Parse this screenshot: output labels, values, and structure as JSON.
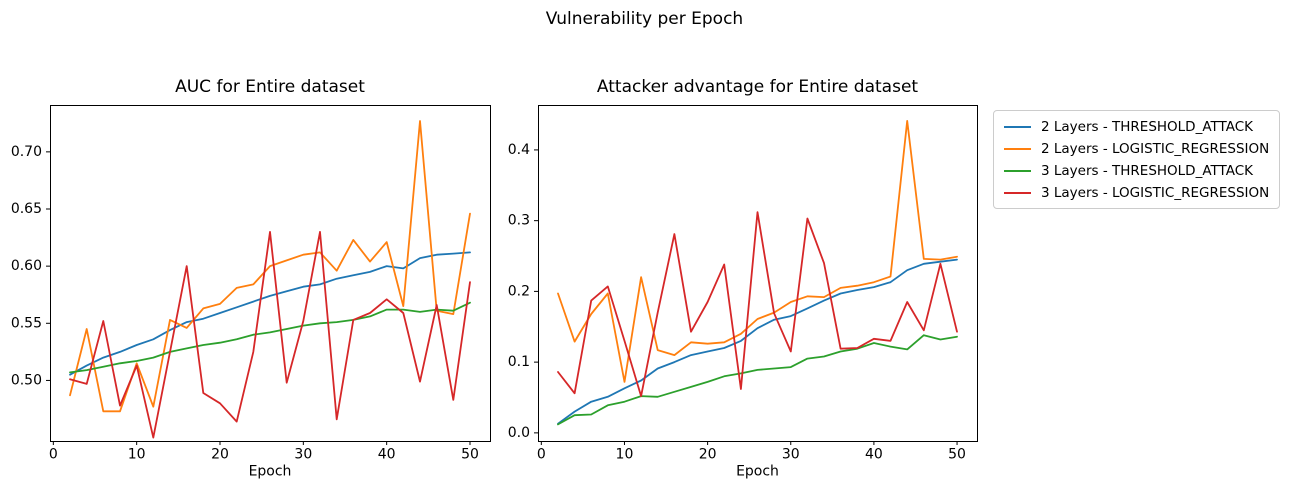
{
  "figure": {
    "suptitle": "Vulnerability per Epoch",
    "background": "#ffffff"
  },
  "legend": {
    "position": "outside upper right",
    "entries": [
      {
        "label": "2 Layers - THRESHOLD_ATTACK",
        "color": "#1f77b4"
      },
      {
        "label": "2 Layers - LOGISTIC_REGRESSION",
        "color": "#ff7f0e"
      },
      {
        "label": "3 Layers - THRESHOLD_ATTACK",
        "color": "#2ca02c"
      },
      {
        "label": "3 Layers - LOGISTIC_REGRESSION",
        "color": "#d62728"
      }
    ]
  },
  "chart_data": [
    {
      "type": "line",
      "title": "AUC for Entire dataset",
      "xlabel": "Epoch",
      "ylabel": "",
      "grid": false,
      "x": [
        2,
        4,
        6,
        8,
        10,
        12,
        14,
        16,
        18,
        20,
        22,
        24,
        26,
        28,
        30,
        32,
        34,
        36,
        38,
        40,
        42,
        44,
        46,
        48,
        50
      ],
      "xlim": [
        -0.4,
        52.4
      ],
      "ylim": [
        0.447,
        0.741
      ],
      "xticks": [
        0,
        10,
        20,
        30,
        40,
        50
      ],
      "xtick_labels": [
        "0",
        "10",
        "20",
        "30",
        "40",
        "50"
      ],
      "yticks": [
        0.5,
        0.55,
        0.6,
        0.65,
        0.7
      ],
      "ytick_labels": [
        "0.50",
        "0.55",
        "0.60",
        "0.65",
        "0.70"
      ],
      "series": [
        {
          "name": "2 Layers - THRESHOLD_ATTACK",
          "color": "#1f77b4",
          "values": [
            0.505,
            0.513,
            0.52,
            0.525,
            0.531,
            0.536,
            0.544,
            0.551,
            0.554,
            0.559,
            0.564,
            0.569,
            0.574,
            0.578,
            0.582,
            0.584,
            0.589,
            0.592,
            0.595,
            0.6,
            0.598,
            0.607,
            0.61,
            0.611,
            0.612
          ]
        },
        {
          "name": "2 Layers - LOGISTIC_REGRESSION",
          "color": "#ff7f0e",
          "values": [
            0.487,
            0.545,
            0.473,
            0.473,
            0.515,
            0.477,
            0.553,
            0.546,
            0.563,
            0.567,
            0.581,
            0.584,
            0.6,
            0.605,
            0.61,
            0.612,
            0.596,
            0.623,
            0.604,
            0.621,
            0.565,
            0.727,
            0.561,
            0.558,
            0.646
          ]
        },
        {
          "name": "3 Layers - THRESHOLD_ATTACK",
          "color": "#2ca02c",
          "values": [
            0.507,
            0.509,
            0.512,
            0.515,
            0.517,
            0.52,
            0.525,
            0.528,
            0.531,
            0.533,
            0.536,
            0.54,
            0.542,
            0.545,
            0.548,
            0.55,
            0.551,
            0.553,
            0.556,
            0.562,
            0.562,
            0.56,
            0.562,
            0.561,
            0.568
          ]
        },
        {
          "name": "3 Layers - LOGISTIC_REGRESSION",
          "color": "#d62728",
          "values": [
            0.501,
            0.497,
            0.552,
            0.478,
            0.513,
            0.45,
            0.525,
            0.6,
            0.489,
            0.48,
            0.464,
            0.525,
            0.63,
            0.498,
            0.552,
            0.63,
            0.466,
            0.553,
            0.559,
            0.571,
            0.559,
            0.499,
            0.566,
            0.483,
            0.586
          ]
        }
      ]
    },
    {
      "type": "line",
      "title": "Attacker advantage for Entire dataset",
      "xlabel": "Epoch",
      "ylabel": "",
      "grid": false,
      "x": [
        2,
        4,
        6,
        8,
        10,
        12,
        14,
        16,
        18,
        20,
        22,
        24,
        26,
        28,
        30,
        32,
        34,
        36,
        38,
        40,
        42,
        44,
        46,
        48,
        50
      ],
      "xlim": [
        -0.4,
        52.4
      ],
      "ylim": [
        -0.0115,
        0.4635
      ],
      "xticks": [
        0,
        10,
        20,
        30,
        40,
        50
      ],
      "xtick_labels": [
        "0",
        "10",
        "20",
        "30",
        "40",
        "50"
      ],
      "yticks": [
        0.0,
        0.1,
        0.2,
        0.3,
        0.4
      ],
      "ytick_labels": [
        "0.0",
        "0.1",
        "0.2",
        "0.3",
        "0.4"
      ],
      "series": [
        {
          "name": "2 Layers - THRESHOLD_ATTACK",
          "color": "#1f77b4",
          "values": [
            0.013,
            0.03,
            0.044,
            0.051,
            0.063,
            0.074,
            0.091,
            0.1,
            0.11,
            0.115,
            0.12,
            0.13,
            0.148,
            0.16,
            0.165,
            0.176,
            0.187,
            0.197,
            0.202,
            0.206,
            0.213,
            0.23,
            0.239,
            0.242,
            0.245
          ]
        },
        {
          "name": "2 Layers - LOGISTIC_REGRESSION",
          "color": "#ff7f0e",
          "values": [
            0.197,
            0.129,
            0.168,
            0.197,
            0.072,
            0.22,
            0.117,
            0.11,
            0.128,
            0.126,
            0.128,
            0.14,
            0.161,
            0.17,
            0.185,
            0.193,
            0.192,
            0.205,
            0.208,
            0.213,
            0.221,
            0.441,
            0.246,
            0.245,
            0.249
          ]
        },
        {
          "name": "3 Layers - THRESHOLD_ATTACK",
          "color": "#2ca02c",
          "values": [
            0.012,
            0.025,
            0.026,
            0.039,
            0.044,
            0.052,
            0.051,
            0.058,
            0.065,
            0.072,
            0.08,
            0.084,
            0.089,
            0.091,
            0.093,
            0.105,
            0.108,
            0.115,
            0.119,
            0.127,
            0.122,
            0.118,
            0.138,
            0.132,
            0.136
          ]
        },
        {
          "name": "3 Layers - LOGISTIC_REGRESSION",
          "color": "#d62728",
          "values": [
            0.086,
            0.056,
            0.187,
            0.207,
            0.13,
            0.052,
            0.17,
            0.281,
            0.143,
            0.185,
            0.238,
            0.062,
            0.312,
            0.169,
            0.115,
            0.303,
            0.24,
            0.119,
            0.12,
            0.133,
            0.13,
            0.185,
            0.145,
            0.239,
            0.143
          ]
        }
      ]
    }
  ]
}
